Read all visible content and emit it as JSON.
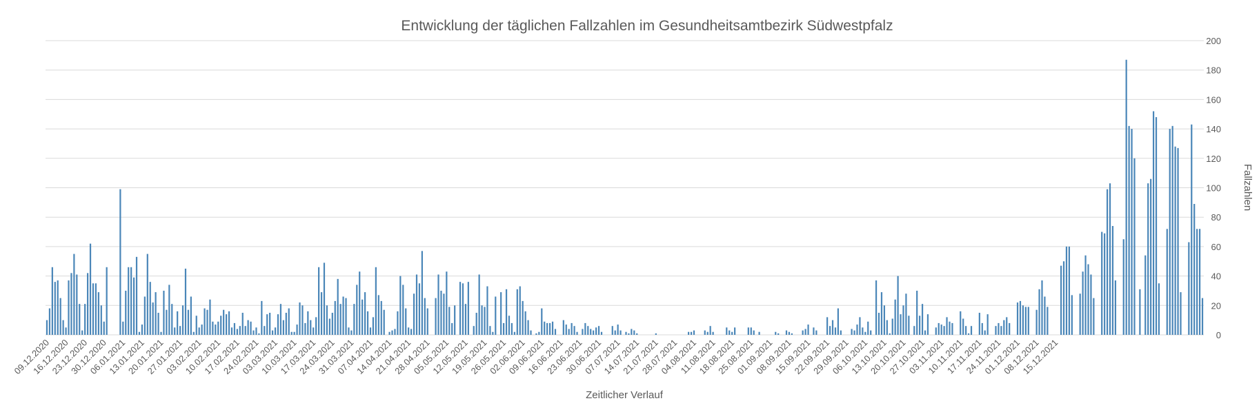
{
  "chart_data": {
    "type": "bar",
    "title": "Entwicklung der täglichen Fallzahlen im Gesundheitsamtbezirk Südwestpfalz",
    "xlabel": "Zeitlicher Verlauf",
    "ylabel": "Fallzahlen",
    "ylim": [
      0,
      200
    ],
    "yticks": [
      0,
      20,
      40,
      60,
      80,
      100,
      120,
      140,
      160,
      180,
      200
    ],
    "y_axis_position": "right",
    "grid": true,
    "legend": "none",
    "bar_color": "#4a86b8",
    "start_date": "09.12.2020",
    "xtick_labels": [
      "09.12.2020",
      "16.12.2020",
      "23.12.2020",
      "30.12.2020",
      "06.01.2021",
      "13.01.2021",
      "20.01.2021",
      "27.01.2021",
      "03.02.2021",
      "10.02.2021",
      "17.02.2021",
      "24.02.2021",
      "03.03.2021",
      "10.03.2021",
      "17.03.2021",
      "24.03.2021",
      "31.03.2021",
      "07.04.2021",
      "14.04.2021",
      "21.04.2021",
      "28.04.2021",
      "05.05.2021",
      "12.05.2021",
      "19.05.2021",
      "26.05.2021",
      "02.06.2021",
      "09.06.2021",
      "16.06.2021",
      "23.06.2021",
      "30.06.2021",
      "07.07.2021",
      "14.07.2021",
      "21.07.2021",
      "28.07.2021",
      "04.08.2021",
      "11.08.2021",
      "18.08.2021",
      "25.08.2021",
      "01.09.2021",
      "08.09.2021",
      "15.09.2021",
      "22.09.2021",
      "29.09.2021",
      "06.10.2021",
      "13.10.2021",
      "20.10.2021",
      "27.10.2021",
      "03.11.2021",
      "10.11.2021",
      "17.11.2021",
      "24.11.2021",
      "01.12.2021",
      "08.12.2021",
      "15.12.2021"
    ],
    "values": [
      10,
      18,
      46,
      36,
      37,
      25,
      10,
      5,
      37,
      42,
      55,
      41,
      21,
      3,
      21,
      42,
      62,
      35,
      35,
      29,
      20,
      9,
      46,
      0,
      0,
      0,
      0,
      99,
      9,
      30,
      46,
      46,
      39,
      53,
      2,
      7,
      26,
      55,
      36,
      22,
      29,
      15,
      2,
      30,
      17,
      34,
      21,
      5,
      16,
      6,
      20,
      45,
      17,
      26,
      2,
      13,
      5,
      7,
      18,
      17,
      24,
      9,
      7,
      9,
      13,
      17,
      14,
      16,
      5,
      8,
      4,
      6,
      15,
      6,
      10,
      9,
      3,
      5,
      1,
      23,
      6,
      14,
      15,
      3,
      5,
      14,
      21,
      10,
      15,
      18,
      2,
      2,
      7,
      22,
      20,
      8,
      16,
      10,
      5,
      12,
      46,
      29,
      49,
      20,
      11,
      15,
      23,
      38,
      21,
      26,
      25,
      5,
      3,
      21,
      34,
      43,
      24,
      29,
      16,
      5,
      12,
      46,
      27,
      23,
      17,
      0,
      2,
      3,
      4,
      16,
      40,
      34,
      18,
      5,
      4,
      28,
      41,
      35,
      57,
      25,
      18,
      0,
      0,
      25,
      41,
      30,
      28,
      43,
      19,
      8,
      20,
      0,
      36,
      35,
      21,
      36,
      0,
      6,
      15,
      41,
      20,
      19,
      33,
      6,
      2,
      26,
      0,
      29,
      8,
      31,
      13,
      8,
      2,
      31,
      33,
      23,
      16,
      10,
      3,
      0,
      1,
      2,
      18,
      9,
      8,
      8,
      9,
      4,
      0,
      0,
      10,
      7,
      4,
      8,
      6,
      2,
      0,
      4,
      8,
      6,
      4,
      3,
      5,
      6,
      2,
      0,
      0,
      0,
      6,
      3,
      7,
      3,
      0,
      2,
      1,
      4,
      3,
      1,
      0,
      0,
      0,
      0,
      0,
      0,
      1,
      0,
      0,
      0,
      0,
      0,
      0,
      0,
      0,
      0,
      0,
      0,
      2,
      2,
      3,
      0,
      0,
      0,
      3,
      2,
      6,
      2,
      0,
      0,
      0,
      0,
      5,
      3,
      2,
      5,
      0,
      0,
      0,
      0,
      5,
      5,
      3,
      0,
      2,
      0,
      0,
      0,
      0,
      0,
      2,
      1,
      0,
      0,
      3,
      2,
      1,
      0,
      0,
      0,
      3,
      4,
      7,
      0,
      5,
      3,
      0,
      0,
      0,
      12,
      6,
      10,
      5,
      18,
      3,
      0,
      0,
      0,
      4,
      3,
      7,
      12,
      5,
      2,
      9,
      3,
      0,
      37,
      15,
      29,
      20,
      10,
      1,
      11,
      24,
      40,
      14,
      20,
      28,
      13,
      0,
      6,
      30,
      13,
      21,
      3,
      14,
      0,
      0,
      5,
      8,
      7,
      6,
      12,
      9,
      8,
      0,
      0,
      16,
      11,
      6,
      1,
      6,
      0,
      0,
      15,
      8,
      3,
      14,
      0,
      0,
      6,
      8,
      6,
      10,
      12,
      8,
      0,
      0,
      22,
      23,
      20,
      19,
      19,
      0,
      0,
      17,
      31,
      37,
      26,
      19,
      0,
      0,
      0,
      0,
      47,
      50,
      60,
      60,
      27,
      0,
      0,
      28,
      43,
      54,
      48,
      41,
      25,
      0,
      0,
      70,
      69,
      99,
      103,
      74,
      37,
      0,
      0,
      65,
      187,
      142,
      140,
      120,
      0,
      31,
      0,
      54,
      103,
      106,
      152,
      148,
      35,
      0,
      0,
      72,
      140,
      142,
      128,
      127,
      29,
      0,
      0,
      63,
      143,
      89,
      72,
      72,
      25
    ]
  }
}
